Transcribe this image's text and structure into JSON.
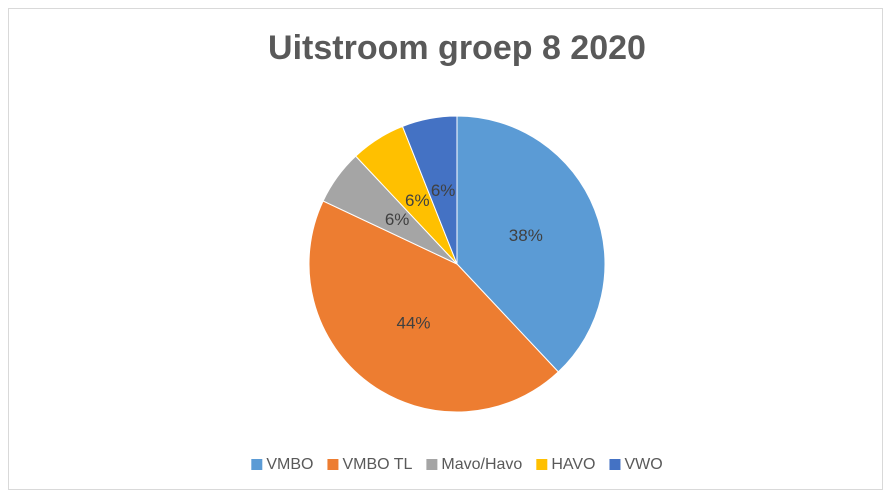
{
  "chart_data": {
    "type": "pie",
    "title": "Uitstroom groep 8 2020",
    "categories": [
      "VMBO",
      "VMBO TL",
      "Mavo/Havo",
      "HAVO",
      "VWO"
    ],
    "values": [
      38,
      44,
      6,
      6,
      6
    ],
    "value_labels": [
      "38%",
      "44%",
      "6%",
      "6%",
      "6%"
    ],
    "colors": [
      "#5b9bd5",
      "#ed7d31",
      "#a5a5a5",
      "#ffc000",
      "#4472c4"
    ],
    "legend": "bottom"
  }
}
